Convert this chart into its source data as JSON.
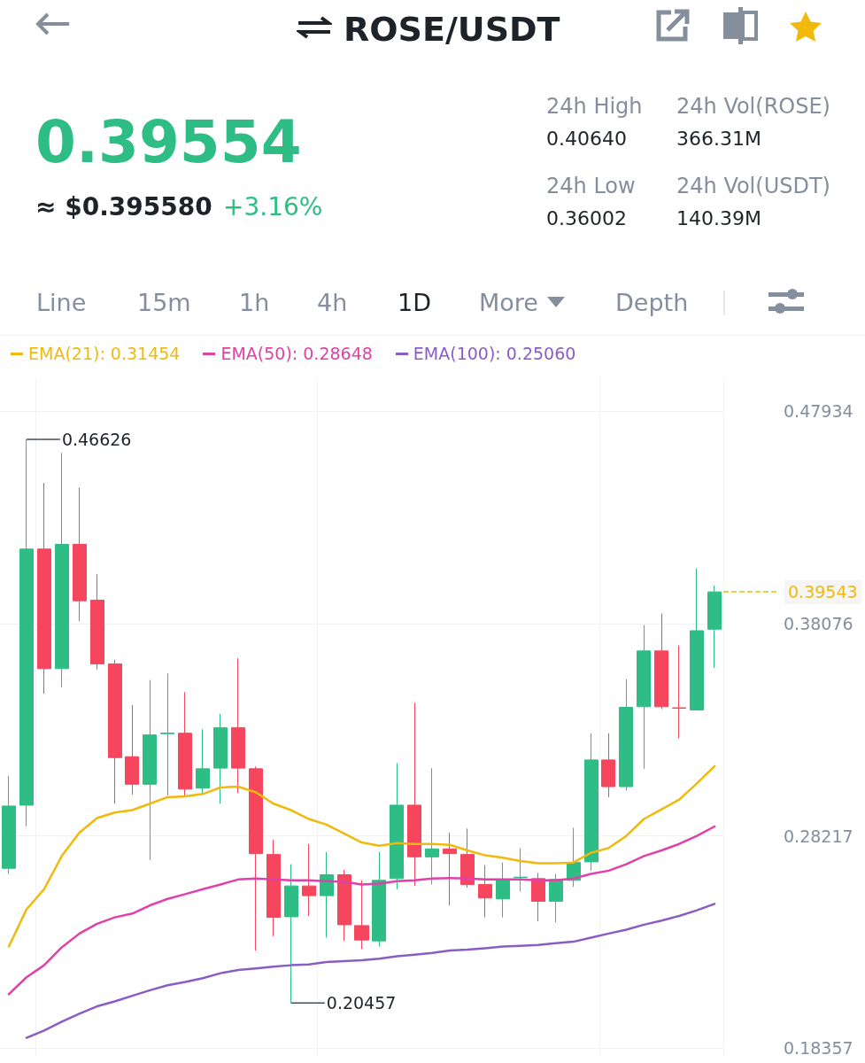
{
  "chart_data": {
    "type": "candlestick",
    "title": "ROSE/USDT",
    "categories": [
      null,
      null,
      null,
      null,
      null,
      null,
      null,
      null,
      null,
      null,
      null,
      null,
      null,
      null,
      null,
      null,
      null,
      null,
      null,
      null,
      null,
      null,
      null,
      null,
      null,
      null,
      null,
      null,
      null,
      null,
      null,
      null,
      null,
      null,
      null,
      null,
      null,
      null,
      null,
      null,
      null
    ],
    "series": [
      {
        "ohlc": [
          [
            0.2671,
            0.3099,
            0.2645,
            0.296
          ],
          [
            0.2964,
            0.46626,
            0.2866,
            0.4153
          ],
          [
            0.4153,
            0.446,
            0.3481,
            0.3598
          ],
          [
            0.3598,
            0.4599,
            0.3511,
            0.4175
          ],
          [
            0.4175,
            0.4438,
            0.3819,
            0.3913
          ],
          [
            0.3916,
            0.4036,
            0.3594,
            0.362
          ],
          [
            0.362,
            0.3639,
            0.2971,
            0.3185
          ],
          [
            0.3189,
            0.3429,
            0.3013,
            0.3061
          ],
          [
            0.3061,
            0.3545,
            0.2709,
            0.329
          ],
          [
            0.3296,
            0.3575,
            0.3009,
            0.3299
          ],
          [
            0.3298,
            0.3489,
            0.3001,
            0.3039
          ],
          [
            0.3043,
            0.3316,
            0.302,
            0.3133
          ],
          [
            0.3136,
            0.3388,
            0.2971,
            0.3324
          ],
          [
            0.3324,
            0.3646,
            0.302,
            0.3136
          ],
          [
            0.3133,
            0.3144,
            0.2289,
            0.2739
          ],
          [
            0.2735,
            0.2803,
            0.2356,
            0.2443
          ],
          [
            0.2446,
            0.269,
            0.20457,
            0.2589
          ],
          [
            0.2589,
            0.2784,
            0.245,
            0.2544
          ],
          [
            0.2544,
            0.2746,
            0.2349,
            0.2641
          ],
          [
            0.2641,
            0.2664,
            0.2334,
            0.2409
          ],
          [
            0.2405,
            0.2615,
            0.2296,
            0.2338
          ],
          [
            0.2334,
            0.2746,
            0.2308,
            0.2615
          ],
          [
            0.2623,
            0.3159,
            0.2574,
            0.2964
          ],
          [
            0.2964,
            0.344,
            0.2589,
            0.2724
          ],
          [
            0.2724,
            0.3136,
            0.2596,
            0.2761
          ],
          [
            0.2761,
            0.2836,
            0.2499,
            0.2739
          ],
          [
            0.2735,
            0.2855,
            0.2581,
            0.2596
          ],
          [
            0.2596,
            0.2686,
            0.2443,
            0.2533
          ],
          [
            0.2529,
            0.2698,
            0.2443,
            0.2615
          ],
          [
            0.2628,
            0.2765,
            0.2563,
            0.263
          ],
          [
            0.2623,
            0.2649,
            0.2425,
            0.2518
          ],
          [
            0.2518,
            0.2645,
            0.242,
            0.2619
          ],
          [
            0.2615,
            0.2859,
            0.2585,
            0.2698
          ],
          [
            0.2701,
            0.3298,
            0.266,
            0.3174
          ],
          [
            0.3174,
            0.3298,
            0.3001,
            0.305
          ],
          [
            0.305,
            0.3549,
            0.3031,
            0.3418
          ],
          [
            0.3421,
            0.38,
            0.3133,
            0.368
          ],
          [
            0.368,
            0.3853,
            0.341,
            0.3421
          ],
          [
            0.3416,
            0.3706,
            0.3275,
            0.3414
          ],
          [
            0.3406,
            0.4063,
            0.3406,
            0.3774
          ],
          [
            0.3781,
            0.3984,
            0.3601,
            0.39543
          ]
        ],
        "colors": [
          "#2ebd85",
          "#2ebd85",
          "#f6465d",
          "#2ebd85",
          "#f6465d",
          "#f6465d",
          "#f6465d",
          "#f6465d",
          "#2ebd85",
          "#2ebd85",
          "#f6465d",
          "#2ebd85",
          "#2ebd85",
          "#f6465d",
          "#f6465d",
          "#f6465d",
          "#2ebd85",
          "#f6465d",
          "#2ebd85",
          "#f6465d",
          "#f6465d",
          "#2ebd85",
          "#2ebd85",
          "#f6465d",
          "#2ebd85",
          "#f6465d",
          "#f6465d",
          "#f6465d",
          "#2ebd85",
          "#2ebd85",
          "#f6465d",
          "#2ebd85",
          "#2ebd85",
          "#2ebd85",
          "#f6465d",
          "#2ebd85",
          "#2ebd85",
          "#f6465d",
          "#f6465d",
          "#2ebd85",
          "#2ebd85"
        ]
      },
      {
        "type": "line",
        "name": "EMA(21): 0.31454",
        "color": "#f0b90b",
        "values": [
          0.2308,
          0.248,
          0.2574,
          0.2728,
          0.2836,
          0.2904,
          0.293,
          0.2941,
          0.2971,
          0.3001,
          0.3005,
          0.3016,
          0.3046,
          0.305,
          0.3024,
          0.2971,
          0.2941,
          0.29,
          0.2874,
          0.2833,
          0.2791,
          0.2776,
          0.2788,
          0.2784,
          0.2784,
          0.278,
          0.2754,
          0.2731,
          0.272,
          0.2705,
          0.2694,
          0.2694,
          0.2698,
          0.2743,
          0.2765,
          0.2821,
          0.29,
          0.2945,
          0.299,
          0.3065,
          0.3145
        ]
      },
      {
        "type": "line",
        "name": "EMA(50): 0.28648",
        "color": "#e040a8",
        "values": [
          0.2086,
          0.2165,
          0.2221,
          0.2304,
          0.2368,
          0.2413,
          0.2443,
          0.2461,
          0.2499,
          0.2529,
          0.2551,
          0.2574,
          0.2596,
          0.2619,
          0.2623,
          0.2619,
          0.2615,
          0.2615,
          0.2611,
          0.2608,
          0.2596,
          0.26,
          0.2611,
          0.2615,
          0.2623,
          0.2626,
          0.2623,
          0.2619,
          0.2619,
          0.2619,
          0.2615,
          0.2615,
          0.2623,
          0.2645,
          0.266,
          0.269,
          0.2728,
          0.2754,
          0.2784,
          0.2821,
          0.2865
        ]
      },
      {
        "type": "line",
        "name": "EMA(100): 0.25060",
        "color": "#8a5cc6",
        "values": [
          null,
          0.1884,
          0.1918,
          0.1959,
          0.1996,
          0.203,
          0.2053,
          0.2079,
          0.2105,
          0.2128,
          0.2143,
          0.2161,
          0.2184,
          0.2199,
          0.2206,
          0.2214,
          0.2221,
          0.2225,
          0.2236,
          0.224,
          0.2244,
          0.2251,
          0.2263,
          0.227,
          0.2278,
          0.2289,
          0.2293,
          0.23,
          0.2308,
          0.2311,
          0.2315,
          0.2323,
          0.233,
          0.2349,
          0.2368,
          0.2386,
          0.2409,
          0.2428,
          0.245,
          0.2476,
          0.2506
        ]
      }
    ],
    "ylim": [
      0.18,
      0.495
    ],
    "yticks": [
      0.18357,
      0.28217,
      0.38076,
      0.47934
    ],
    "grid": true,
    "legend": "top left",
    "marker": "none",
    "line_style": "solid",
    "ref_lines": [
      {
        "axis": "y",
        "value": 0.39543,
        "label": "0.39543",
        "color": "#f0b90b",
        "line_style": "dashed"
      }
    ],
    "annotations": [
      "0.39554",
      "≈ $0.395580",
      "+3.16%",
      "24h High",
      "0.40640",
      "24h Low",
      "0.36002",
      "24h Vol(ROSE)",
      "366.31M",
      "24h Vol(USDT)",
      "140.39M",
      "Line",
      "15m",
      "1h",
      "4h",
      "1D",
      "More",
      "Depth",
      "0.46626",
      "0.20457"
    ]
  }
}
